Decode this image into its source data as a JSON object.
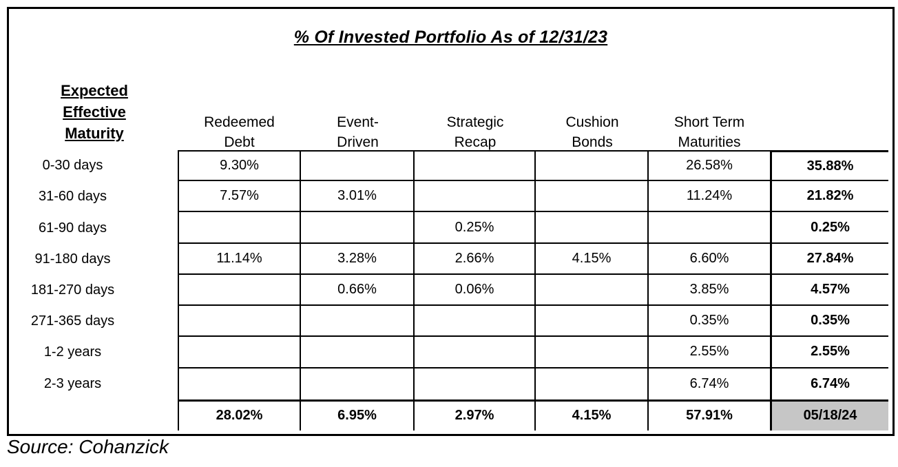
{
  "title": "% Of Invested Portfolio As of 12/31/23",
  "row_header_lines": [
    "Expected",
    "Effective",
    "Maturity"
  ],
  "source": "Source: Cohanzick",
  "colors": {
    "border": "#000000",
    "text": "#000000",
    "highlight_bg": "#c6c6c6",
    "page_bg": "#ffffff"
  },
  "chart_data": {
    "type": "table",
    "title": "% Of Invested Portfolio As of 12/31/23",
    "row_axis_label": "Expected Effective Maturity",
    "column_headers": [
      {
        "label": "Redeemed Debt",
        "lines": [
          "Redeemed",
          "Debt"
        ]
      },
      {
        "label": "Event-Driven",
        "lines": [
          "Event-",
          "Driven"
        ]
      },
      {
        "label": "Strategic Recap",
        "lines": [
          "Strategic",
          "Recap"
        ]
      },
      {
        "label": "Cushion Bonds",
        "lines": [
          "Cushion",
          "Bonds"
        ]
      },
      {
        "label": "Short Term Maturities",
        "lines": [
          "Short Term",
          "Maturities"
        ]
      },
      {
        "label": "",
        "lines": []
      }
    ],
    "rows": [
      {
        "label": "0-30 days",
        "values": [
          "9.30%",
          "",
          "",
          "",
          "26.58%"
        ],
        "total": "35.88%"
      },
      {
        "label": "31-60 days",
        "values": [
          "7.57%",
          "3.01%",
          "",
          "",
          "11.24%"
        ],
        "total": "21.82%"
      },
      {
        "label": "61-90 days",
        "values": [
          "",
          "",
          "0.25%",
          "",
          ""
        ],
        "total": "0.25%"
      },
      {
        "label": "91-180 days",
        "values": [
          "11.14%",
          "3.28%",
          "2.66%",
          "4.15%",
          "6.60%"
        ],
        "total": "27.84%"
      },
      {
        "label": "181-270 days",
        "values": [
          "",
          "0.66%",
          "0.06%",
          "",
          "3.85%"
        ],
        "total": "4.57%"
      },
      {
        "label": "271-365 days",
        "values": [
          "",
          "",
          "",
          "",
          "0.35%"
        ],
        "total": "0.35%"
      },
      {
        "label": "1-2 years",
        "values": [
          "",
          "",
          "",
          "",
          "2.55%"
        ],
        "total": "2.55%"
      },
      {
        "label": "2-3 years",
        "values": [
          "",
          "",
          "",
          "",
          "6.74%"
        ],
        "total": "6.74%"
      }
    ],
    "totals_row": {
      "label": "",
      "values": [
        "28.02%",
        "6.95%",
        "2.97%",
        "4.15%",
        "57.91%"
      ],
      "total": "05/18/24"
    }
  }
}
